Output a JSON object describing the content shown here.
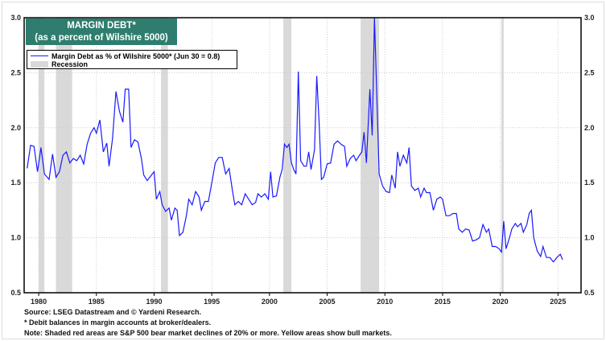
{
  "chart_data": {
    "type": "line",
    "title": "MARGIN DEBT*",
    "subtitle": "(as a percent of Wilshire 5000)",
    "xlim": [
      1978.74,
      2027.0
    ],
    "ylim": [
      0.5,
      3.0
    ],
    "x_ticks": [
      1980,
      1985,
      1990,
      1995,
      2000,
      2005,
      2010,
      2015,
      2020,
      2025
    ],
    "y_ticks": [
      "0.5",
      "1.0",
      "1.5",
      "2.0",
      "2.5",
      "3.0"
    ],
    "grid": true,
    "legend_placement": "top-left",
    "legend": [
      "Margin Debt as % of Wilshire 5000*  (Jun 30 = 0.8)",
      "Recession"
    ],
    "series": [
      {
        "name": "Margin Debt as % of Wilshire 5000*",
        "color": "#1a1aff",
        "x": [
          1979,
          1979.3,
          1979.6,
          1979.9,
          1980.2,
          1980.5,
          1980.9,
          1981.2,
          1981.5,
          1981.8,
          1982.1,
          1982.4,
          1982.7,
          1983,
          1983.3,
          1983.6,
          1983.9,
          1984.2,
          1984.5,
          1984.8,
          1985,
          1985.3,
          1985.6,
          1985.9,
          1986.1,
          1986.4,
          1986.7,
          1987,
          1987.3,
          1987.5,
          1987.8,
          1988,
          1988.3,
          1988.6,
          1988.9,
          1989.1,
          1989.4,
          1989.7,
          1990,
          1990.2,
          1990.5,
          1990.7,
          1991,
          1991.3,
          1991.5,
          1991.8,
          1992,
          1992.2,
          1992.5,
          1992.8,
          1993,
          1993.3,
          1993.6,
          1993.9,
          1994.1,
          1994.4,
          1994.7,
          1995,
          1995.3,
          1995.6,
          1995.9,
          1996.2,
          1996.5,
          1996.8,
          1997,
          1997.3,
          1997.6,
          1997.9,
          1998.2,
          1998.5,
          1998.8,
          1999,
          1999.3,
          1999.6,
          1999.9,
          2000.1,
          2000.3,
          2000.6,
          2000.9,
          2001.1,
          2001.3,
          2001.5,
          2001.7,
          2001.9,
          2002.1,
          2002.3,
          2002.5,
          2002.7,
          2003,
          2003.2,
          2003.4,
          2003.6,
          2003.9,
          2004.1,
          2004.3,
          2004.5,
          2004.7,
          2005,
          2005.3,
          2005.6,
          2005.9,
          2006.2,
          2006.5,
          2006.7,
          2007,
          2007.3,
          2007.5,
          2007.8,
          2008,
          2008.2,
          2008.4,
          2008.7,
          2008.9,
          2009.1,
          2009.3,
          2009.5,
          2009.8,
          2010.1,
          2010.4,
          2010.6,
          2010.9,
          2011.1,
          2011.3,
          2011.6,
          2011.9,
          2012.1,
          2012.3,
          2012.6,
          2012.9,
          2013.1,
          2013.4,
          2013.6,
          2013.9,
          2014.2,
          2014.5,
          2014.8,
          2015,
          2015.3,
          2015.6,
          2015.9,
          2016.2,
          2016.4,
          2016.7,
          2017,
          2017.3,
          2017.6,
          2017.9,
          2018.2,
          2018.5,
          2018.8,
          2019,
          2019.3,
          2019.6,
          2019.9,
          2020.1,
          2020.3,
          2020.5,
          2020.8,
          2021,
          2021.3,
          2021.5,
          2021.8,
          2022,
          2022.3,
          2022.5,
          2022.7,
          2022.9,
          2023.2,
          2023.5,
          2023.7,
          2024,
          2024.3,
          2024.6,
          2024.9,
          2025.2,
          2025.4
        ],
        "values": [
          1.63,
          1.84,
          1.83,
          1.6,
          1.82,
          1.58,
          1.53,
          1.76,
          1.55,
          1.6,
          1.75,
          1.78,
          1.68,
          1.72,
          1.7,
          1.75,
          1.67,
          1.85,
          1.95,
          2.0,
          1.95,
          2.07,
          1.78,
          1.86,
          1.65,
          1.9,
          2.33,
          2.15,
          2.05,
          2.35,
          2.35,
          1.82,
          1.89,
          1.87,
          1.72,
          1.57,
          1.52,
          1.56,
          1.6,
          1.35,
          1.42,
          1.3,
          1.24,
          1.27,
          1.16,
          1.27,
          1.25,
          1.02,
          1.05,
          1.2,
          1.35,
          1.3,
          1.42,
          1.37,
          1.25,
          1.33,
          1.33,
          1.5,
          1.68,
          1.73,
          1.73,
          1.58,
          1.63,
          1.42,
          1.3,
          1.33,
          1.3,
          1.4,
          1.35,
          1.3,
          1.32,
          1.4,
          1.37,
          1.4,
          1.35,
          1.6,
          1.37,
          1.38,
          1.55,
          1.62,
          1.85,
          1.82,
          1.85,
          1.68,
          1.62,
          1.58,
          2.51,
          1.7,
          1.65,
          1.65,
          1.78,
          1.62,
          1.8,
          2.47,
          2.05,
          1.53,
          1.55,
          1.67,
          1.68,
          1.85,
          1.88,
          1.85,
          1.83,
          1.65,
          1.72,
          1.75,
          1.7,
          1.75,
          1.78,
          1.96,
          1.68,
          2.35,
          1.93,
          3.0,
          2.3,
          1.58,
          1.47,
          1.42,
          1.41,
          1.57,
          1.45,
          1.78,
          1.65,
          1.75,
          1.68,
          1.82,
          1.47,
          1.43,
          1.45,
          1.37,
          1.45,
          1.41,
          1.41,
          1.25,
          1.35,
          1.37,
          1.35,
          1.2,
          1.2,
          1.22,
          1.22,
          1.08,
          1.05,
          1.08,
          1.07,
          0.97,
          0.98,
          1.0,
          1.12,
          1.05,
          1.08,
          0.92,
          0.92,
          0.9,
          0.87,
          1.15,
          0.9,
          1.0,
          1.08,
          1.13,
          1.1,
          1.13,
          1.05,
          1.12,
          1.22,
          1.25,
          1.0,
          0.88,
          0.83,
          0.92,
          0.82,
          0.82,
          0.78,
          0.82,
          0.85,
          0.8
        ]
      }
    ],
    "recessions": [
      [
        1980.0,
        1980.5
      ],
      [
        1981.5,
        1982.9
      ],
      [
        1990.6,
        1991.2
      ],
      [
        2001.2,
        2001.9
      ],
      [
        2007.9,
        2009.5
      ],
      [
        2020.1,
        2020.3
      ]
    ],
    "recession_color": "#d9d9d9"
  },
  "notes": {
    "source": "Source: LSEG Datastream and © Yardeni Research.",
    "footnote": "* Debit balances in margin accounts at broker/dealers.",
    "note": "Note: Shaded red areas are S&P 500 bear market declines of 20% or more. Yellow areas show bull markets."
  }
}
